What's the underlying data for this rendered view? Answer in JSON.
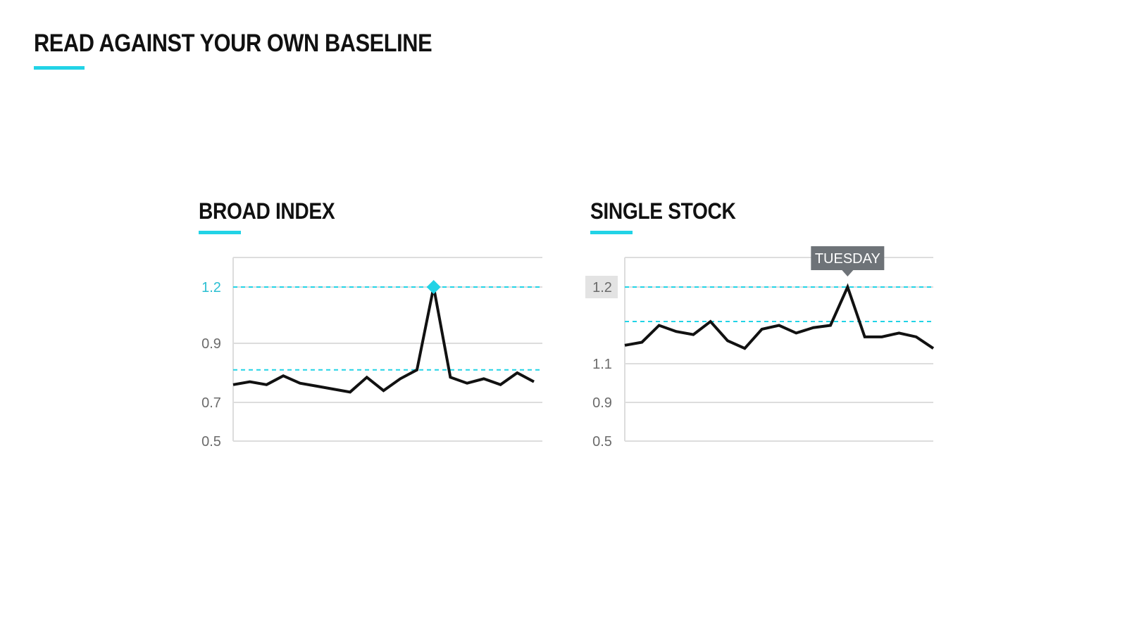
{
  "page": {
    "title": "READ AGAINST YOUR OWN BASELINE"
  },
  "colors": {
    "accent": "#22d3e6",
    "line": "#111111",
    "grid": "#dddddd",
    "tick": "#6b6b6b",
    "tick_highlight": "#2bbfd2",
    "tooltip_bg": "#6e7378",
    "tick_badge_bg": "#e3e3e3"
  },
  "chart_data": [
    {
      "title": "BROAD INDEX",
      "type": "line",
      "y_ticks": [
        "1.2",
        "0.9",
        "0.7",
        "0.5"
      ],
      "highlighted_tick": "1.2",
      "reference_lines": [
        {
          "value": 1.2,
          "style": "dashed"
        },
        {
          "value": 0.81,
          "style": "dashed"
        }
      ],
      "series": [
        {
          "values": [
            0.76,
            0.77,
            0.76,
            0.79,
            0.765,
            0.755,
            0.745,
            0.735,
            0.785,
            0.74,
            0.78,
            0.81,
            1.2,
            0.785,
            0.765,
            0.78,
            0.76,
            0.8,
            0.77
          ]
        }
      ],
      "peak_marker": {
        "index": 12,
        "shape": "diamond",
        "color": "#22d3e6"
      }
    },
    {
      "title": "SINGLE STOCK",
      "type": "line",
      "y_ticks": [
        "1.2",
        "1.1",
        "0.9",
        "0.5"
      ],
      "highlighted_tick": "1.2",
      "reference_lines": [
        {
          "value": 1.2,
          "style": "dashed"
        },
        {
          "value": 1.155,
          "style": "dashed"
        }
      ],
      "series": [
        {
          "values": [
            1.124,
            1.128,
            1.15,
            1.142,
            1.138,
            1.155,
            1.13,
            1.12,
            1.145,
            1.15,
            1.14,
            1.147,
            1.15,
            1.2,
            1.135,
            1.135,
            1.14,
            1.135,
            1.12
          ]
        }
      ],
      "annotation": {
        "label": "TUESDAY",
        "index": 13
      }
    }
  ]
}
